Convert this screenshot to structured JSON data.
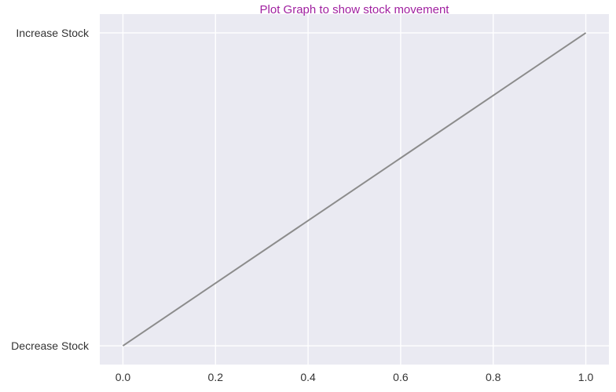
{
  "chart_data": {
    "type": "line",
    "title": "Plot Graph to show stock movement",
    "xlabel": "",
    "ylabel": "",
    "x": [
      0,
      1
    ],
    "y": [
      "Decrease Stock",
      "Increase Stock"
    ],
    "y_categories": [
      "Decrease Stock",
      "Increase Stock"
    ],
    "xlim": [
      -0.05,
      1.05
    ],
    "ylim": [
      -0.06,
      1.06
    ],
    "x_ticks": [
      0.0,
      0.2,
      0.4,
      0.6,
      0.8,
      1.0
    ],
    "x_tick_labels": [
      "0.0",
      "0.2",
      "0.4",
      "0.6",
      "0.8",
      "1.0"
    ],
    "y_tick_labels": [
      "Decrease Stock",
      "Increase Stock"
    ],
    "grid": true,
    "legend": "none",
    "colors": {
      "title": "#a020a0",
      "line": "#8c8c8c",
      "plot_background": "#eaeaf2",
      "grid": "#ffffff"
    }
  }
}
